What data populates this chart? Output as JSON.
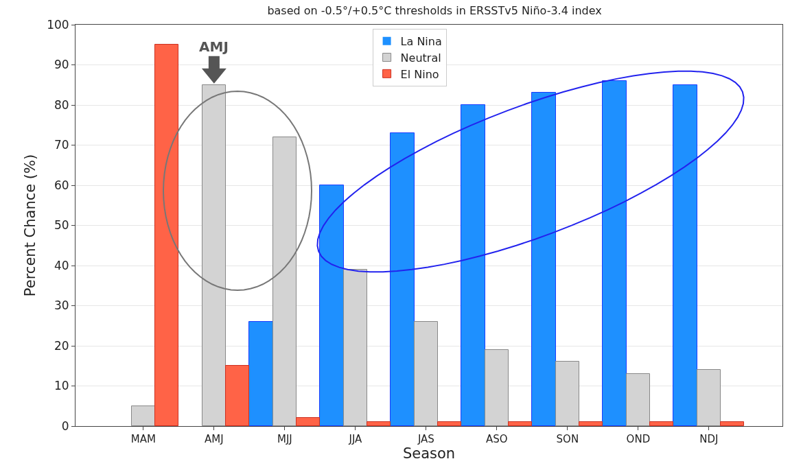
{
  "chart_data": {
    "type": "bar",
    "title": "based on -0.5°/+0.5°C thresholds in ERSSTv5 Niño-3.4 index",
    "xlabel": "Season",
    "ylabel": "Percent Chance (%)",
    "categories": [
      "MAM",
      "AMJ",
      "MJJ",
      "JJA",
      "JAS",
      "ASO",
      "SON",
      "OND",
      "NDJ"
    ],
    "series": [
      {
        "name": "La Nina",
        "color": "#1e90ff",
        "values": [
          0,
          0,
          26,
          60,
          73,
          80,
          83,
          86,
          85
        ]
      },
      {
        "name": "Neutral",
        "color": "#d3d3d3",
        "values": [
          5,
          85,
          72,
          39,
          26,
          19,
          16,
          13,
          14
        ]
      },
      {
        "name": "El Nino",
        "color": "#ff6347",
        "values": [
          95,
          15,
          2,
          1,
          1,
          1,
          1,
          1,
          1
        ]
      }
    ],
    "ylim": [
      0,
      100
    ],
    "yticks": [
      0,
      10,
      20,
      30,
      40,
      50,
      60,
      70,
      80,
      90,
      100
    ],
    "grid": "y",
    "legend": "top",
    "annotations": [
      {
        "text": "AMJ",
        "x": "AMJ",
        "y": 85
      }
    ]
  }
}
